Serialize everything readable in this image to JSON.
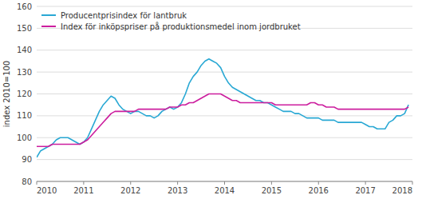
{
  "chart_data": {
    "type": "line",
    "y_label": "index 2010=100",
    "x": [
      2010,
      2010.0833333333333,
      2010.1666666666667,
      2010.25,
      2010.3333333333333,
      2010.4166666666667,
      2010.5,
      2010.5833333333333,
      2010.6666666666667,
      2010.75,
      2010.8333333333333,
      2010.9166666666667,
      2011,
      2011.0833333333333,
      2011.1666666666667,
      2011.25,
      2011.3333333333333,
      2011.4166666666667,
      2011.5,
      2011.5833333333333,
      2011.6666666666667,
      2011.75,
      2011.8333333333333,
      2011.9166666666667,
      2012,
      2012.0833333333333,
      2012.1666666666667,
      2012.25,
      2012.3333333333333,
      2012.4166666666667,
      2012.5,
      2012.5833333333333,
      2012.6666666666667,
      2012.75,
      2012.8333333333333,
      2012.9166666666667,
      2013,
      2013.0833333333333,
      2013.1666666666667,
      2013.25,
      2013.3333333333333,
      2013.4166666666667,
      2013.5,
      2013.5833333333333,
      2013.6666666666667,
      2013.75,
      2013.8333333333333,
      2013.9166666666667,
      2014,
      2014.0833333333333,
      2014.1666666666667,
      2014.25,
      2014.3333333333333,
      2014.4166666666667,
      2014.5,
      2014.5833333333333,
      2014.6666666666667,
      2014.75,
      2014.8333333333333,
      2014.9166666666667,
      2015,
      2015.0833333333333,
      2015.1666666666667,
      2015.25,
      2015.3333333333333,
      2015.4166666666667,
      2015.5,
      2015.5833333333333,
      2015.6666666666667,
      2015.75,
      2015.8333333333333,
      2015.9166666666667,
      2016,
      2016.0833333333333,
      2016.1666666666667,
      2016.25,
      2016.3333333333333,
      2016.4166666666667,
      2016.5,
      2016.5833333333333,
      2016.6666666666667,
      2016.75,
      2016.8333333333333,
      2016.9166666666667,
      2017,
      2017.0833333333333,
      2017.1666666666667,
      2017.25,
      2017.3333333333333,
      2017.4166666666667,
      2017.5,
      2017.5833333333333,
      2017.6666666666667,
      2017.75,
      2017.8333333333333,
      2017.9166666666667
    ],
    "series": [
      {
        "name": "Producentprisindex för lantbruk",
        "color": "#29A8D4",
        "values": [
          91,
          94,
          95,
          96,
          97,
          99,
          100,
          100,
          100,
          99,
          98,
          97,
          98,
          100,
          104,
          108,
          112,
          115,
          117,
          119,
          118,
          115,
          113,
          112,
          111,
          112,
          112,
          111,
          110,
          110,
          109,
          110,
          112,
          113,
          114,
          113,
          114,
          116,
          120,
          125,
          128,
          130,
          133,
          135,
          136,
          135,
          134,
          132,
          128,
          125,
          123,
          122,
          121,
          120,
          119,
          118,
          117,
          117,
          116,
          116,
          115,
          114,
          113,
          112,
          112,
          112,
          111,
          111,
          110,
          109,
          109,
          109,
          109,
          108,
          108,
          108,
          108,
          107,
          107,
          107,
          107,
          107,
          107,
          107,
          106,
          105,
          105,
          104,
          104,
          104,
          107,
          108,
          110,
          110,
          111,
          115
        ]
      },
      {
        "name": "Index för inköpspriser på produktionsmedel inom jordbruket",
        "color": "#CC1E9E",
        "values": [
          96,
          96,
          96,
          96,
          97,
          97,
          97,
          97,
          97,
          97,
          97,
          97,
          98,
          99,
          101,
          103,
          105,
          107,
          109,
          111,
          112,
          112,
          112,
          112,
          112,
          112,
          113,
          113,
          113,
          113,
          113,
          113,
          113,
          113,
          114,
          114,
          114,
          115,
          115,
          116,
          116,
          117,
          118,
          119,
          120,
          120,
          120,
          120,
          119,
          118,
          117,
          117,
          116,
          116,
          116,
          116,
          116,
          116,
          116,
          116,
          116,
          115,
          115,
          115,
          115,
          115,
          115,
          115,
          115,
          115,
          116,
          116,
          115,
          115,
          114,
          114,
          114,
          113,
          113,
          113,
          113,
          113,
          113,
          113,
          113,
          113,
          113,
          113,
          113,
          113,
          113,
          113,
          113,
          113,
          113,
          114
        ]
      }
    ],
    "xlim": [
      2010,
      2018
    ],
    "xticks": [
      2010,
      2011,
      2012,
      2013,
      2014,
      2015,
      2016,
      2017,
      2018
    ],
    "ylim": [
      80,
      160
    ],
    "yticks": [
      80,
      90,
      100,
      110,
      120,
      130,
      140,
      150,
      160
    ],
    "grid": true,
    "legend": "upper left"
  }
}
